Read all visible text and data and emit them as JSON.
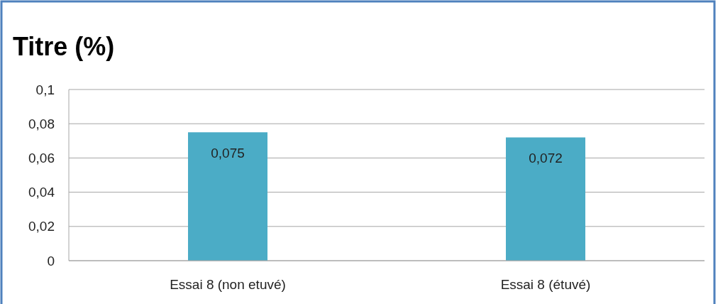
{
  "chart_data": {
    "type": "bar",
    "title": "Titre (%)",
    "categories": [
      "Essai 8 (non etuvé)",
      "Essai 8 (étuvé)"
    ],
    "values": [
      0.075,
      0.072
    ],
    "value_labels": [
      "0,075",
      "0,072"
    ],
    "color": "#4bacc6",
    "ylim": [
      0,
      0.1
    ],
    "yticks": [
      {
        "value": 0,
        "label": "0"
      },
      {
        "value": 0.02,
        "label": "0,02"
      },
      {
        "value": 0.04,
        "label": "0,04"
      },
      {
        "value": 0.06,
        "label": "0,06"
      },
      {
        "value": 0.08,
        "label": "0,08"
      },
      {
        "value": 0.1,
        "label": "0,1"
      }
    ],
    "grid": "y"
  }
}
